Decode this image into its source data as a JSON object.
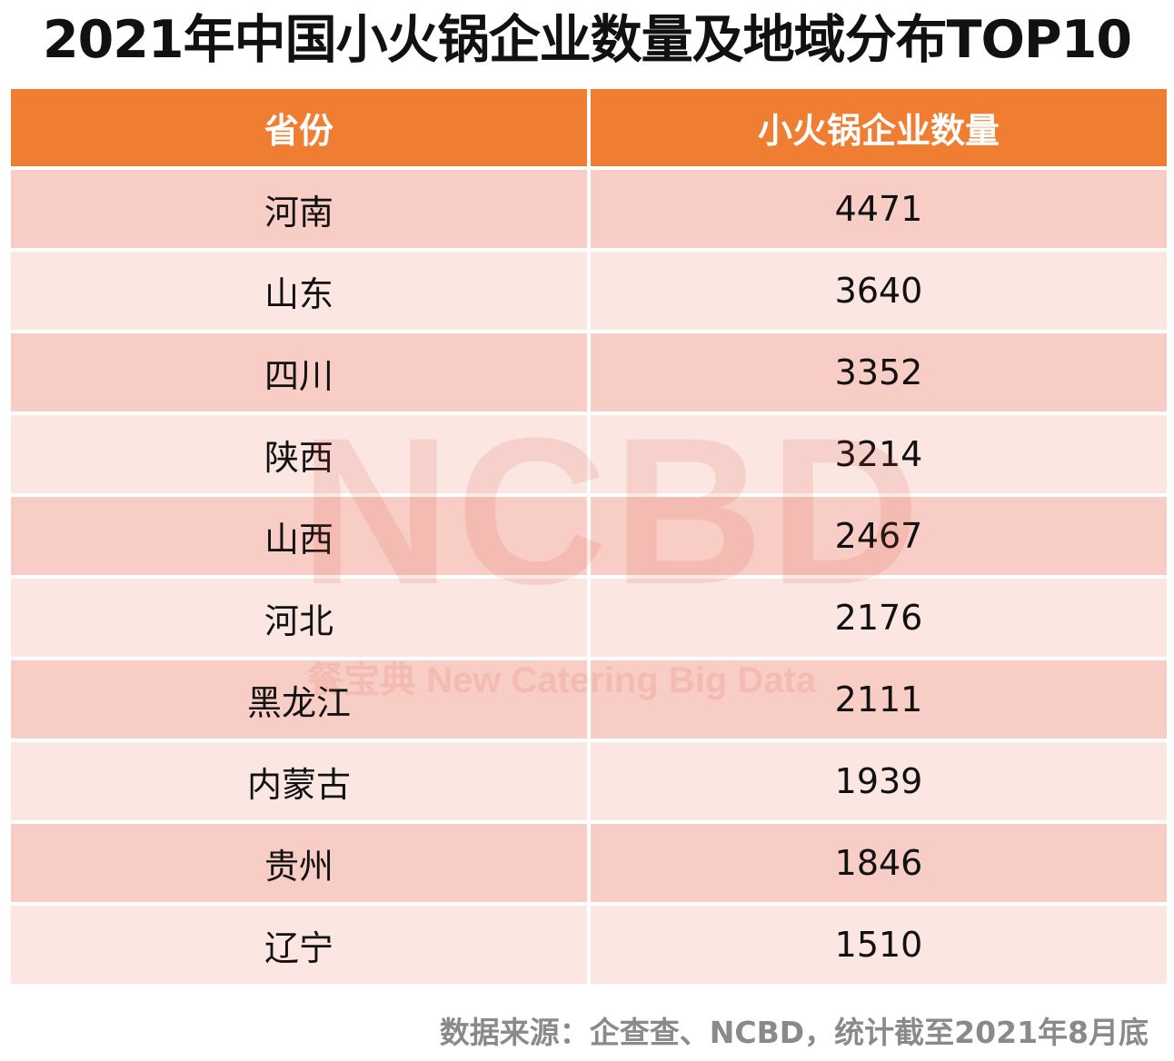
{
  "title": "2021年中国小火锅企业数量及地域分布TOP10",
  "colors": {
    "header_bg": "#ef7d32",
    "row_dark": "#f8cdc5",
    "row_light": "#fbe6e2",
    "watermark": "#dc463c"
  },
  "chart_data": {
    "type": "table",
    "columns": [
      "省份",
      "小火锅企业数量"
    ],
    "rows": [
      [
        "河南",
        "4471"
      ],
      [
        "山东",
        "3640"
      ],
      [
        "四川",
        "3352"
      ],
      [
        "陕西",
        "3214"
      ],
      [
        "山西",
        "2467"
      ],
      [
        "河北",
        "2176"
      ],
      [
        "黑龙江",
        "2111"
      ],
      [
        "内蒙古",
        "1939"
      ],
      [
        "贵州",
        "1846"
      ],
      [
        "辽宁",
        "1510"
      ]
    ]
  },
  "watermark": {
    "logo_text": "NCBD",
    "tagline": "餐宝典 New Catering Big Data"
  },
  "source": "数据来源：企查查、NCBD，统计截至2021年8月底"
}
